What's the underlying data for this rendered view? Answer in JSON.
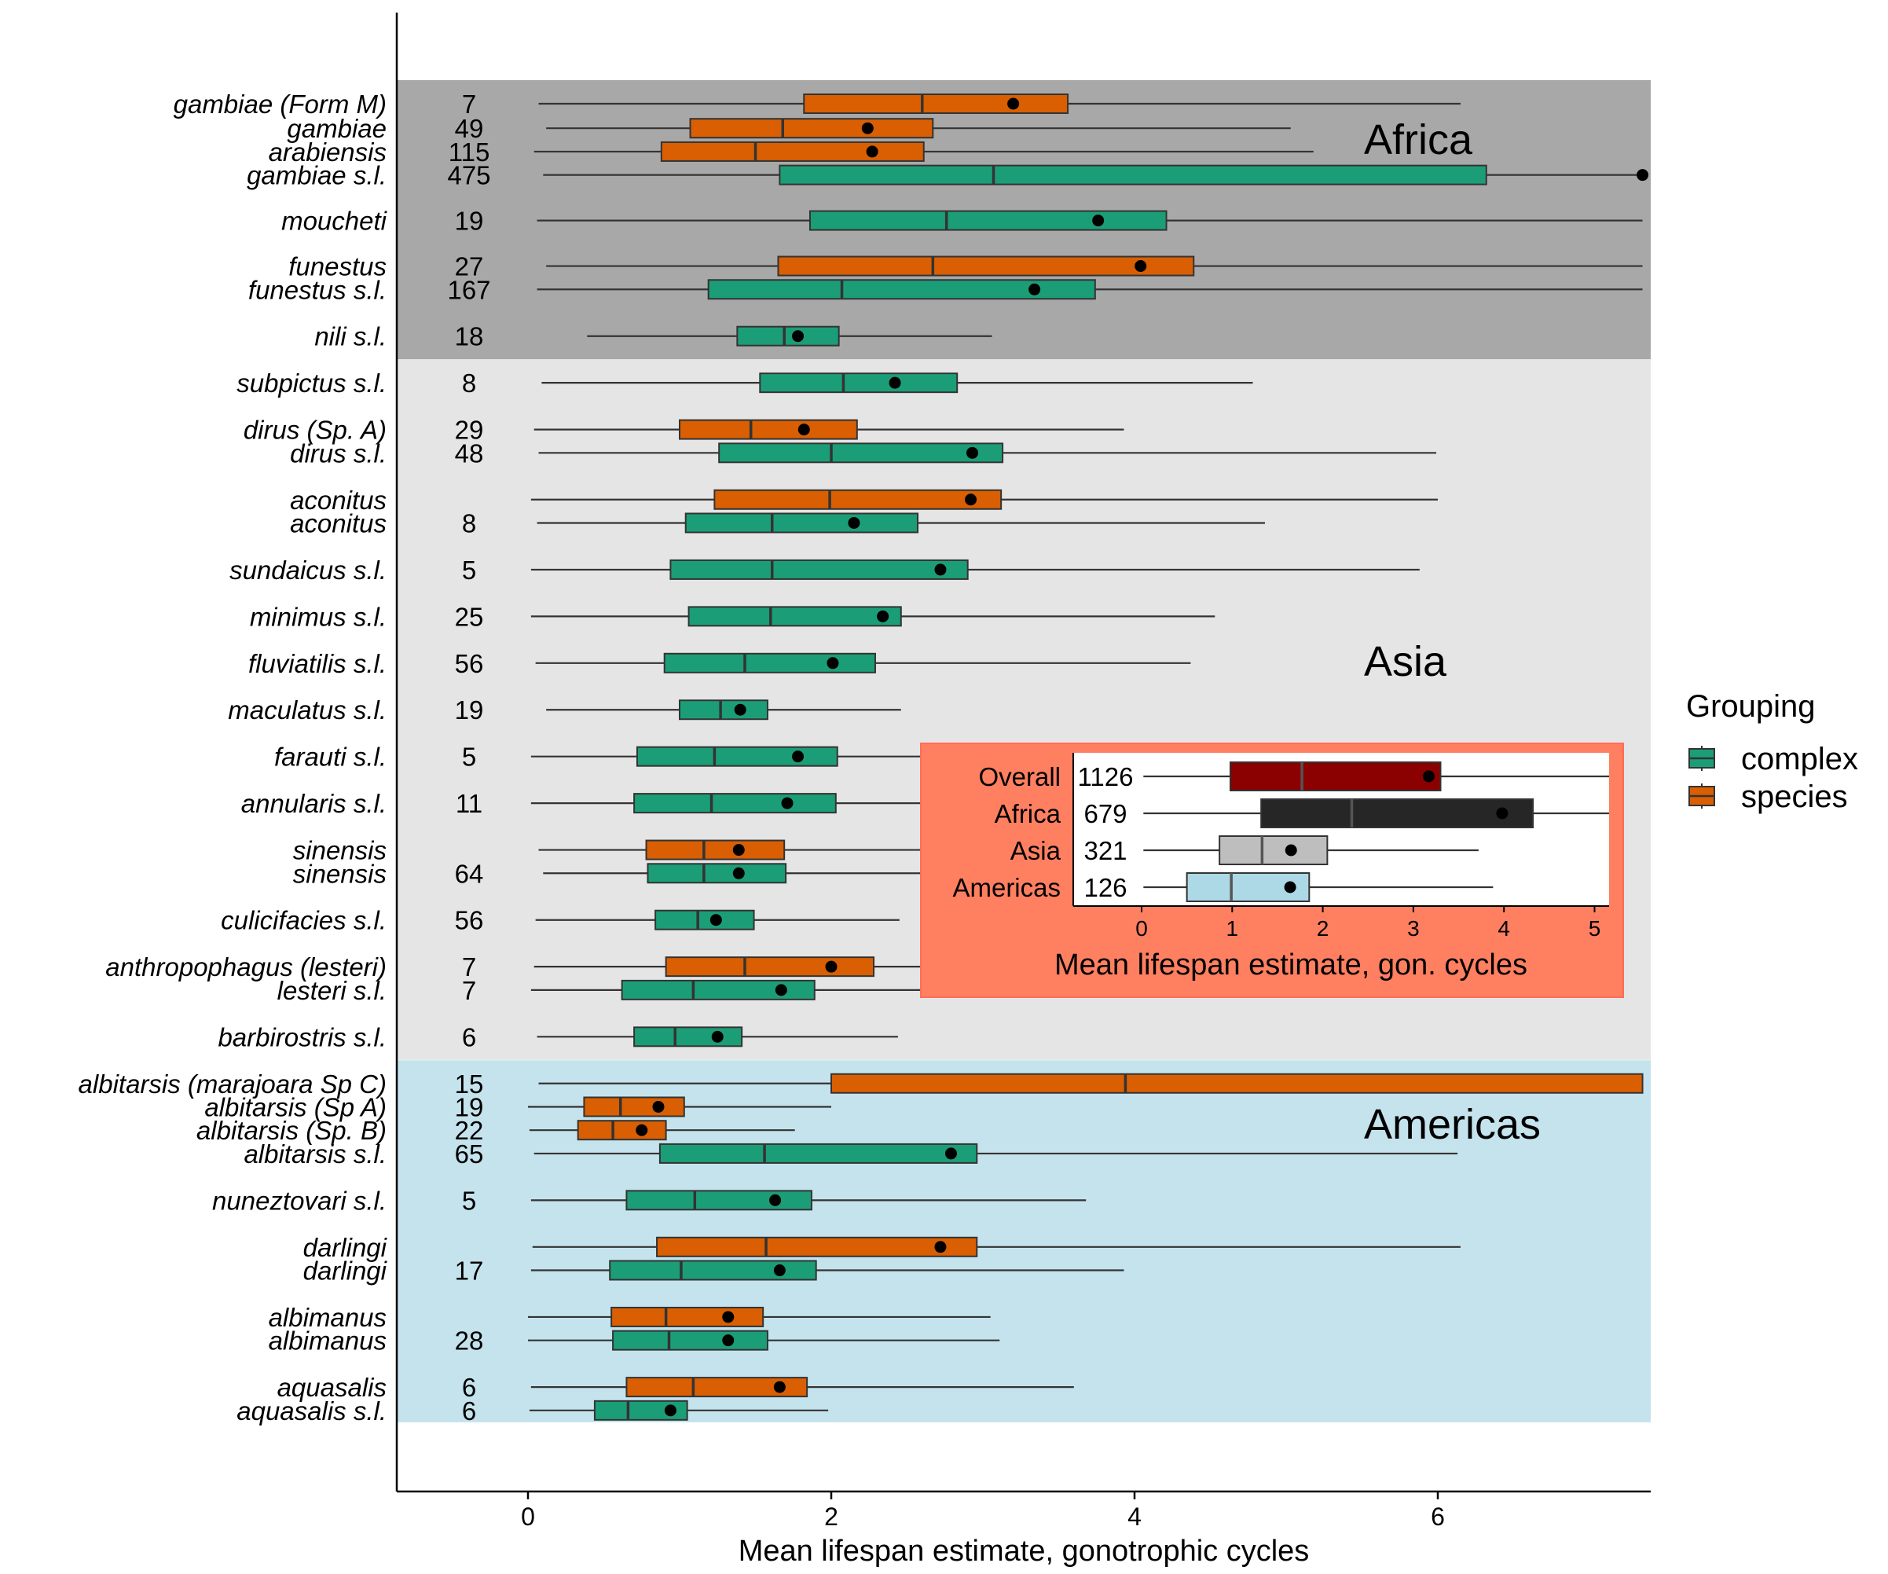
{
  "chart_data": {
    "type": "boxplot",
    "xlabel": "Mean lifespan estimate, gonotrophic cycles",
    "xlim": [
      -0.87,
      7.35
    ],
    "xticks": [
      0,
      2,
      4,
      6
    ],
    "grid": false,
    "legend": {
      "title": "Grouping",
      "placement": "right",
      "entries": [
        {
          "name": "complex",
          "color": "#1b9e77"
        },
        {
          "name": "species",
          "color": "#d95f02"
        }
      ]
    },
    "regions": [
      {
        "name": "Africa",
        "color": "#a8a8a8",
        "from_row": 0,
        "to_row": 7
      },
      {
        "name": "Asia",
        "color": "#e5e5e5",
        "from_row": 8,
        "to_row": 24
      },
      {
        "name": "Americas",
        "color": "#c5e3ed",
        "from_row": 25,
        "to_row": 36
      }
    ],
    "rows": [
      {
        "label": "gambiae (Form M)",
        "n": "7",
        "group": "species",
        "pos": 0.0,
        "wlo": 0.07,
        "q1": 1.82,
        "med": 2.6,
        "q3": 3.56,
        "whi": 6.15,
        "mean": 3.2
      },
      {
        "label": "gambiae",
        "n": "49",
        "group": "species",
        "pos": 1.05,
        "wlo": 0.12,
        "q1": 1.07,
        "med": 1.68,
        "q3": 2.67,
        "whi": 5.03,
        "mean": 2.24
      },
      {
        "label": "arabiensis",
        "n": "115",
        "group": "species",
        "pos": 2.05,
        "wlo": 0.04,
        "q1": 0.88,
        "med": 1.5,
        "q3": 2.61,
        "whi": 5.18,
        "mean": 2.27
      },
      {
        "label": "gambiae s.l.",
        "n": "475",
        "group": "complex",
        "pos": 3.05,
        "wlo": 0.1,
        "q1": 1.66,
        "med": 3.07,
        "q3": 6.32,
        "whi": 7.35,
        "mean": 7.35
      },
      {
        "label": "moucheti",
        "n": "19",
        "group": "complex",
        "pos": 5.0,
        "wlo": 0.06,
        "q1": 1.86,
        "med": 2.76,
        "q3": 4.21,
        "whi": 7.35,
        "mean": 3.76
      },
      {
        "label": "funestus",
        "n": "27",
        "group": "species",
        "pos": 6.95,
        "wlo": 0.12,
        "q1": 1.65,
        "med": 2.67,
        "q3": 4.39,
        "whi": 7.35,
        "mean": 4.04
      },
      {
        "label": "funestus s.l.",
        "n": "167",
        "group": "complex",
        "pos": 7.95,
        "wlo": 0.06,
        "q1": 1.19,
        "med": 2.07,
        "q3": 3.74,
        "whi": 7.35,
        "mean": 3.34
      },
      {
        "label": "nili s.l.",
        "n": "18",
        "group": "complex",
        "pos": 9.95,
        "wlo": 0.39,
        "q1": 1.38,
        "med": 1.69,
        "q3": 2.05,
        "whi": 3.06,
        "mean": 1.78
      },
      {
        "label": "subpictus s.l.",
        "n": "8",
        "group": "complex",
        "pos": 11.95,
        "wlo": 0.09,
        "q1": 1.53,
        "med": 2.08,
        "q3": 2.83,
        "whi": 4.78,
        "mean": 2.42
      },
      {
        "label": "dirus (Sp. A)",
        "n": "29",
        "group": "species",
        "pos": 13.95,
        "wlo": 0.04,
        "q1": 1.0,
        "med": 1.47,
        "q3": 2.17,
        "whi": 3.93,
        "mean": 1.82
      },
      {
        "label": "dirus s.l.",
        "n": "48",
        "group": "complex",
        "pos": 14.95,
        "wlo": 0.07,
        "q1": 1.26,
        "med": 2.0,
        "q3": 3.13,
        "whi": 5.99,
        "mean": 2.93
      },
      {
        "label": "aconitus",
        "n": "",
        "group": "species",
        "pos": 16.95,
        "wlo": 0.02,
        "q1": 1.23,
        "med": 1.99,
        "q3": 3.12,
        "whi": 6.0,
        "mean": 2.92
      },
      {
        "label": "aconitus",
        "n": "8",
        "group": "complex",
        "pos": 17.95,
        "wlo": 0.06,
        "q1": 1.04,
        "med": 1.61,
        "q3": 2.57,
        "whi": 4.86,
        "mean": 2.15
      },
      {
        "label": "sundaicus s.l.",
        "n": "5",
        "group": "complex",
        "pos": 19.95,
        "wlo": 0.02,
        "q1": 0.94,
        "med": 1.61,
        "q3": 2.9,
        "whi": 5.88,
        "mean": 2.72
      },
      {
        "label": "minimus s.l.",
        "n": "25",
        "group": "complex",
        "pos": 21.95,
        "wlo": 0.02,
        "q1": 1.06,
        "med": 1.6,
        "q3": 2.46,
        "whi": 4.53,
        "mean": 2.34
      },
      {
        "label": "fluviatilis s.l.",
        "n": "56",
        "group": "complex",
        "pos": 23.95,
        "wlo": 0.05,
        "q1": 0.9,
        "med": 1.43,
        "q3": 2.29,
        "whi": 4.37,
        "mean": 2.01
      },
      {
        "label": "maculatus s.l.",
        "n": "19",
        "group": "complex",
        "pos": 25.95,
        "wlo": 0.12,
        "q1": 1.0,
        "med": 1.27,
        "q3": 1.58,
        "whi": 2.46,
        "mean": 1.4
      },
      {
        "label": "farauti s.l.",
        "n": "5",
        "group": "complex",
        "pos": 27.95,
        "wlo": 0.02,
        "q1": 0.72,
        "med": 1.23,
        "q3": 2.04,
        "whi": 3.94,
        "mean": 1.78
      },
      {
        "label": "annularis s.l.",
        "n": "11",
        "group": "complex",
        "pos": 29.95,
        "wlo": 0.02,
        "q1": 0.7,
        "med": 1.21,
        "q3": 2.03,
        "whi": 3.94,
        "mean": 1.71
      },
      {
        "label": "sinensis",
        "n": "",
        "group": "species",
        "pos": 31.95,
        "wlo": 0.07,
        "q1": 0.78,
        "med": 1.16,
        "q3": 1.69,
        "whi": 3.07,
        "mean": 1.39
      },
      {
        "label": "sinensis",
        "n": "64",
        "group": "complex",
        "pos": 32.95,
        "wlo": 0.1,
        "q1": 0.79,
        "med": 1.16,
        "q3": 1.7,
        "whi": 3.07,
        "mean": 1.39
      },
      {
        "label": "culicifacies s.l.",
        "n": "56",
        "group": "complex",
        "pos": 34.95,
        "wlo": 0.05,
        "q1": 0.84,
        "med": 1.12,
        "q3": 1.49,
        "whi": 2.45,
        "mean": 1.24
      },
      {
        "label": "anthropophagus (lesteri)",
        "n": "7",
        "group": "species",
        "pos": 36.95,
        "wlo": 0.04,
        "q1": 0.91,
        "med": 1.43,
        "q3": 2.28,
        "whi": 3.97,
        "mean": 2.0
      },
      {
        "label": "lesteri s.l.",
        "n": "7",
        "group": "complex",
        "pos": 37.95,
        "wlo": 0.02,
        "q1": 0.62,
        "med": 1.09,
        "q3": 1.89,
        "whi": 3.79,
        "mean": 1.67
      },
      {
        "label": "barbirostris s.l.",
        "n": "6",
        "group": "complex",
        "pos": 39.95,
        "wlo": 0.06,
        "q1": 0.7,
        "med": 0.97,
        "q3": 1.41,
        "whi": 2.44,
        "mean": 1.25
      },
      {
        "label": "albitarsis (marajoara Sp C)",
        "n": "15",
        "group": "species",
        "pos": 41.95,
        "wlo": 0.07,
        "q1": 2.0,
        "med": 3.94,
        "q3": 7.35,
        "whi": 7.35,
        "mean": null
      },
      {
        "label": "albitarsis (Sp A)",
        "n": "19",
        "group": "species",
        "pos": 42.95,
        "wlo": 0.0,
        "q1": 0.37,
        "med": 0.61,
        "q3": 1.03,
        "whi": 2.0,
        "mean": 0.86
      },
      {
        "label": "albitarsis (Sp. B)",
        "n": "22",
        "group": "species",
        "pos": 43.95,
        "wlo": 0.01,
        "q1": 0.33,
        "med": 0.56,
        "q3": 0.91,
        "whi": 1.76,
        "mean": 0.75
      },
      {
        "label": "albitarsis s.l.",
        "n": "65",
        "group": "complex",
        "pos": 44.95,
        "wlo": 0.04,
        "q1": 0.87,
        "med": 1.56,
        "q3": 2.96,
        "whi": 6.13,
        "mean": 2.79
      },
      {
        "label": "nuneztovari s.l.",
        "n": "5",
        "group": "complex",
        "pos": 46.95,
        "wlo": 0.02,
        "q1": 0.65,
        "med": 1.1,
        "q3": 1.87,
        "whi": 3.68,
        "mean": 1.63
      },
      {
        "label": "darlingi",
        "n": "",
        "group": "species",
        "pos": 48.95,
        "wlo": 0.03,
        "q1": 0.85,
        "med": 1.57,
        "q3": 2.96,
        "whi": 6.15,
        "mean": 2.72
      },
      {
        "label": "darlingi",
        "n": "17",
        "group": "complex",
        "pos": 49.95,
        "wlo": 0.02,
        "q1": 0.54,
        "med": 1.01,
        "q3": 1.9,
        "whi": 3.93,
        "mean": 1.66
      },
      {
        "label": "albimanus",
        "n": "",
        "group": "species",
        "pos": 51.95,
        "wlo": 0.0,
        "q1": 0.55,
        "med": 0.91,
        "q3": 1.55,
        "whi": 3.05,
        "mean": 1.32
      },
      {
        "label": "albimanus",
        "n": "28",
        "group": "complex",
        "pos": 52.95,
        "wlo": 0.0,
        "q1": 0.56,
        "med": 0.93,
        "q3": 1.58,
        "whi": 3.11,
        "mean": 1.32
      },
      {
        "label": "aquasalis",
        "n": "6",
        "group": "species",
        "pos": 54.95,
        "wlo": 0.02,
        "q1": 0.65,
        "med": 1.09,
        "q3": 1.84,
        "whi": 3.6,
        "mean": 1.66
      },
      {
        "label": "aquasalis s.l.",
        "n": "6",
        "group": "complex",
        "pos": 55.95,
        "wlo": 0.01,
        "q1": 0.44,
        "med": 0.66,
        "q3": 1.05,
        "whi": 1.98,
        "mean": 0.94
      }
    ],
    "inset": {
      "xlabel": "Mean lifespan estimate, gon. cycles",
      "xlim": [
        -0.75,
        5.3
      ],
      "xticks": [
        0,
        1,
        2,
        3,
        4,
        5
      ],
      "frame_color": "#ff7f61",
      "rows": [
        {
          "label": "Overall",
          "n": "1126",
          "color": "#8b0000",
          "wlo": 0.02,
          "q1": 0.98,
          "med": 1.77,
          "q3": 3.3,
          "whi": 5.3,
          "mean": 3.17
        },
        {
          "label": "Africa",
          "n": "679",
          "color": "#262626",
          "wlo": 0.02,
          "q1": 1.32,
          "med": 2.32,
          "q3": 4.32,
          "whi": 5.3,
          "mean": 3.98
        },
        {
          "label": "Asia",
          "n": "321",
          "color": "#bebebe",
          "wlo": 0.02,
          "q1": 0.86,
          "med": 1.33,
          "q3": 2.05,
          "whi": 3.72,
          "mean": 1.65
        },
        {
          "label": "Americas",
          "n": "126",
          "color": "#add8e6",
          "wlo": 0.02,
          "q1": 0.5,
          "med": 0.99,
          "q3": 1.85,
          "whi": 3.88,
          "mean": 1.64
        }
      ]
    }
  }
}
